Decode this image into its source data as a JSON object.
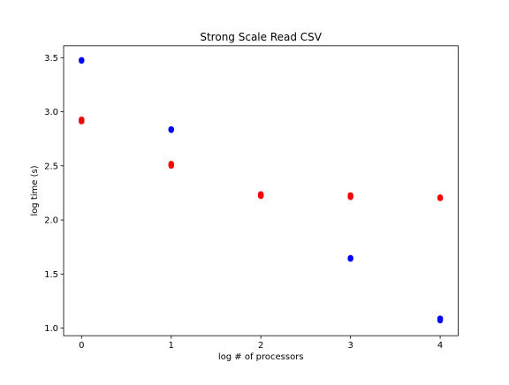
{
  "chart_data": {
    "type": "scatter",
    "title": "Strong Scale Read CSV",
    "xlabel": "log # of processors",
    "ylabel": "log time (s)",
    "xlim": [
      -0.2,
      4.2
    ],
    "ylim": [
      0.93,
      3.61
    ],
    "x_ticks": [
      0,
      1,
      2,
      3,
      4
    ],
    "y_ticks": [
      1.0,
      1.5,
      2.0,
      2.5,
      3.0,
      3.5
    ],
    "x_tick_labels": [
      "0",
      "1",
      "2",
      "3",
      "4"
    ],
    "y_tick_labels": [
      "1.0",
      "1.5",
      "2.0",
      "2.5",
      "3.0",
      "3.5"
    ],
    "grid": false,
    "legend": "none",
    "series": [
      {
        "color": "#0000ff",
        "points": [
          {
            "x": 0,
            "y": 3.47
          },
          {
            "x": 0,
            "y": 3.48
          },
          {
            "x": 1,
            "y": 2.83
          },
          {
            "x": 1,
            "y": 2.84
          },
          {
            "x": 3,
            "y": 1.64
          },
          {
            "x": 3,
            "y": 1.65
          },
          {
            "x": 4,
            "y": 1.07
          },
          {
            "x": 4,
            "y": 1.08
          },
          {
            "x": 4,
            "y": 1.09
          }
        ]
      },
      {
        "color": "#ff0000",
        "points": [
          {
            "x": 0,
            "y": 2.91
          },
          {
            "x": 0,
            "y": 2.92
          },
          {
            "x": 0,
            "y": 2.93
          },
          {
            "x": 1,
            "y": 2.5
          },
          {
            "x": 1,
            "y": 2.51
          },
          {
            "x": 1,
            "y": 2.52
          },
          {
            "x": 2,
            "y": 2.22
          },
          {
            "x": 2,
            "y": 2.23
          },
          {
            "x": 2,
            "y": 2.24
          },
          {
            "x": 3,
            "y": 2.21
          },
          {
            "x": 3,
            "y": 2.22
          },
          {
            "x": 3,
            "y": 2.23
          },
          {
            "x": 4,
            "y": 2.2
          },
          {
            "x": 4,
            "y": 2.21
          }
        ]
      }
    ]
  }
}
